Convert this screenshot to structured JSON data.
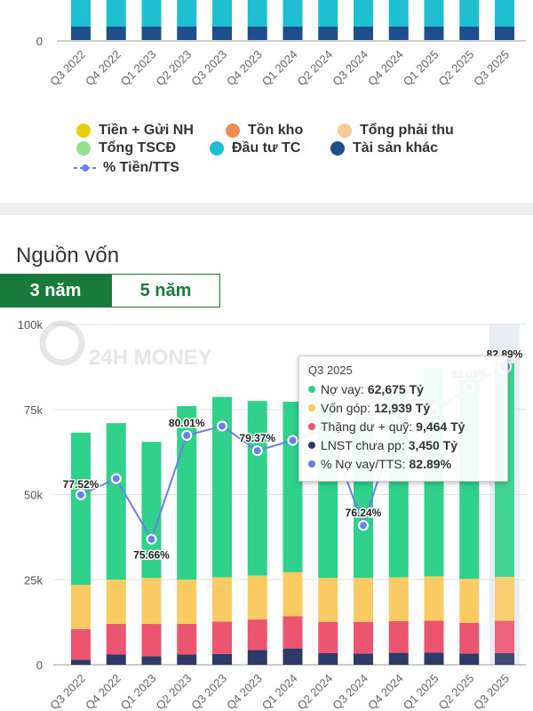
{
  "top_chart": {
    "type": "bar",
    "y_tick_label": "0",
    "categories": [
      "Q3 2022",
      "Q4 2022",
      "Q1 2023",
      "Q2 2023",
      "Q3 2023",
      "Q4 2023",
      "Q1 2024",
      "Q2 2024",
      "Q3 2024",
      "Q4 2024",
      "Q1 2025",
      "Q2 2025",
      "Q3 2025"
    ],
    "colors": {
      "dark": "#1f4e8c",
      "teal": "#1dbfd0"
    }
  },
  "legend": {
    "items": [
      {
        "label": "Tiền + Gửi NH",
        "color": "#e8cf12"
      },
      {
        "label": "Tồn kho",
        "color": "#f28b4f"
      },
      {
        "label": "Tổng phải thu",
        "color": "#f9c99a"
      },
      {
        "label": "Tổng TSCĐ",
        "color": "#90e08c"
      },
      {
        "label": "Đầu tư TC",
        "color": "#1dbfd0"
      },
      {
        "label": "Tài sản khác",
        "color": "#1f4e8c"
      }
    ],
    "line_item": {
      "label": "% Tiền/TTS",
      "color": "#6b7fe8"
    }
  },
  "section": {
    "title": "Nguồn vốn",
    "tabs": [
      "3 năm",
      "5 năm"
    ]
  },
  "chart_data": {
    "type": "bar",
    "stacked": true,
    "categories": [
      "Q3 2022",
      "Q4 2022",
      "Q1 2023",
      "Q2 2023",
      "Q3 2023",
      "Q4 2023",
      "Q1 2024",
      "Q2 2024",
      "Q3 2024",
      "Q4 2024",
      "Q1 2025",
      "Q2 2025",
      "Q3 2025"
    ],
    "y_ticks": [
      0,
      25000,
      50000,
      75000,
      100000
    ],
    "y_tick_labels": [
      "0",
      "25k",
      "50k",
      "75k",
      "100k"
    ],
    "ylim": [
      0,
      100000
    ],
    "series": [
      {
        "name": "LNST chưa pp",
        "color": "#2b3a67",
        "values": [
          1500,
          3000,
          2500,
          3000,
          3200,
          4300,
          4800,
          3400,
          3300,
          3500,
          3600,
          3300,
          3450
        ]
      },
      {
        "name": "Thặng dư + quỹ",
        "color": "#ec5570",
        "values": [
          9000,
          9000,
          9500,
          9000,
          9500,
          9000,
          9500,
          9200,
          9300,
          9300,
          9400,
          9000,
          9464
        ]
      },
      {
        "name": "Vốn góp",
        "color": "#fbcb63",
        "values": [
          13000,
          13000,
          13500,
          13000,
          13000,
          12900,
          12900,
          12900,
          12900,
          12900,
          13000,
          12939,
          12939
        ]
      },
      {
        "name": "Nợ vay",
        "color": "#2fd18b",
        "values": [
          44700,
          46000,
          40000,
          51000,
          53000,
          51300,
          50100,
          51000,
          47500,
          54000,
          61000,
          59500,
          62675
        ]
      }
    ],
    "line_series": {
      "name": "% Nợ vay/TTS",
      "color": "#6b7fe8",
      "values": [
        77.52,
        78.2,
        75.66,
        80.01,
        80.4,
        79.37,
        79.8,
        80.3,
        76.24,
        80.8,
        81.0,
        82.03,
        82.89
      ]
    },
    "point_labels": [
      {
        "index": 0,
        "text": "77.52%"
      },
      {
        "index": 2,
        "text": "75.66%"
      },
      {
        "index": 3,
        "text": "80.01%"
      },
      {
        "index": 5,
        "text": "79.37%"
      },
      {
        "index": 8,
        "text": "76.24%"
      },
      {
        "index": 11,
        "text": "82.03%"
      },
      {
        "index": 12,
        "text": "82.89%"
      }
    ],
    "highlight_index": 12,
    "watermark": "24H MONEY"
  },
  "tooltip": {
    "title": "Q3 2025",
    "rows": [
      {
        "label": "Nợ vay:",
        "value": "62,675 Tỷ",
        "color": "#2fd18b"
      },
      {
        "label": "Vốn góp:",
        "value": "12,939 Tỷ",
        "color": "#fbcb63"
      },
      {
        "label": "Thặng dư + quỹ:",
        "value": "9,464 Tỷ",
        "color": "#ec5570"
      },
      {
        "label": "LNST chưa pp:",
        "value": "3,450 Tỷ",
        "color": "#2b3a67"
      },
      {
        "label": "% Nợ vay/TTS:",
        "value": "82.89%",
        "color": "#6b7fe8"
      }
    ]
  }
}
